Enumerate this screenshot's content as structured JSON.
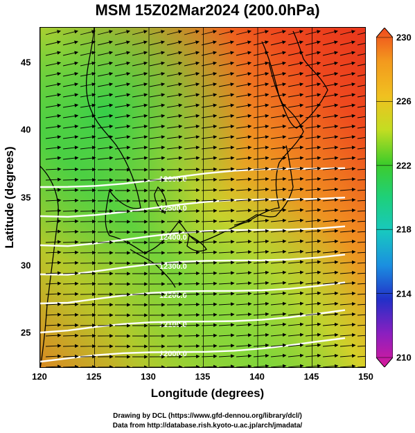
{
  "title": "MSM 15Z02Mar2024 (200.0hPa)",
  "x_axis": {
    "label": "Longitude (degrees)",
    "ticks": [
      "120",
      "125",
      "130",
      "135",
      "140",
      "145",
      "150"
    ],
    "range": [
      120,
      150
    ]
  },
  "y_axis": {
    "label": "Latitude  (degrees)",
    "ticks": [
      "25",
      "30",
      "35",
      "40",
      "45"
    ],
    "range": [
      22.4,
      47.6
    ]
  },
  "colorbar": {
    "ticks": [
      "230",
      "226",
      "222",
      "218",
      "214",
      "210"
    ],
    "range": [
      210,
      230
    ],
    "colors": [
      "#d81a9a",
      "#8a1fc0",
      "#2230c8",
      "#1b8fe0",
      "#18c8c0",
      "#1ed07a",
      "#3fcc2a",
      "#c4dd22",
      "#f0c020",
      "#f39a1e",
      "#ef4a1e"
    ]
  },
  "contour_labels": [
    "12600.0",
    "12500.0",
    "12400.0",
    "12300.0",
    "12200.0",
    "12100.0",
    "12000.0"
  ],
  "credit": {
    "line1": "Drawing by DCL (https://www.gfd-dennou.org/library/dcl/)",
    "line2": "Data from http://database.rish.kyoto-u.ac.jp/arch/jmadata/"
  }
}
